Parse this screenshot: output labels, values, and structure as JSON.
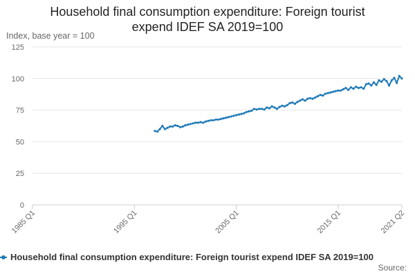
{
  "chart_data": {
    "type": "line",
    "title": "Household final consumption expenditure: Foreign tourist expend IDEF SA 2019=100",
    "title_lines": [
      "Household final consumption expenditure: Foreign tourist",
      "expend IDEF SA 2019=100"
    ],
    "ylabel": "Index, base year = 100",
    "xlabel": "",
    "ylim": [
      0,
      125
    ],
    "yticks": [
      0,
      25,
      50,
      75,
      100,
      125
    ],
    "xlim": [
      1985,
      2021.25
    ],
    "xticks": [
      {
        "label": "1985 Q1",
        "value": 1985
      },
      {
        "label": "1995 Q1",
        "value": 1995
      },
      {
        "label": "2005 Q1",
        "value": 2005
      },
      {
        "label": "2015 Q1",
        "value": 2015
      },
      {
        "label": "2021 Q2",
        "value": 2021.25
      }
    ],
    "grid": true,
    "legend_position": "bottom",
    "series": [
      {
        "name": "Household final consumption expenditure: Foreign tourist expend IDEF SA 2019=100",
        "color": "#1f7ab8",
        "points": [
          [
            1997.0,
            58.5
          ],
          [
            1997.25,
            58.0
          ],
          [
            1997.5,
            60.0
          ],
          [
            1997.75,
            62.5
          ],
          [
            1998.0,
            60.0
          ],
          [
            1998.25,
            61.0
          ],
          [
            1998.5,
            62.0
          ],
          [
            1998.75,
            62.0
          ],
          [
            1999.0,
            63.0
          ],
          [
            1999.25,
            62.5
          ],
          [
            1999.5,
            61.5
          ],
          [
            1999.75,
            62.0
          ],
          [
            2000.0,
            63.0
          ],
          [
            2000.25,
            63.5
          ],
          [
            2000.5,
            64.0
          ],
          [
            2000.75,
            64.5
          ],
          [
            2001.0,
            65.0
          ],
          [
            2001.25,
            65.0
          ],
          [
            2001.5,
            65.5
          ],
          [
            2001.75,
            65.0
          ],
          [
            2002.0,
            66.0
          ],
          [
            2002.25,
            66.5
          ],
          [
            2002.5,
            67.0
          ],
          [
            2002.75,
            67.0
          ],
          [
            2003.0,
            67.5
          ],
          [
            2003.25,
            67.5
          ],
          [
            2003.5,
            68.0
          ],
          [
            2003.75,
            68.5
          ],
          [
            2004.0,
            69.0
          ],
          [
            2004.25,
            69.5
          ],
          [
            2004.5,
            70.0
          ],
          [
            2004.75,
            70.5
          ],
          [
            2005.0,
            71.0
          ],
          [
            2005.25,
            71.5
          ],
          [
            2005.5,
            72.0
          ],
          [
            2005.75,
            72.5
          ],
          [
            2006.0,
            73.5
          ],
          [
            2006.25,
            74.0
          ],
          [
            2006.5,
            74.5
          ],
          [
            2006.75,
            76.0
          ],
          [
            2007.0,
            75.5
          ],
          [
            2007.25,
            76.0
          ],
          [
            2007.5,
            76.0
          ],
          [
            2007.75,
            75.5
          ],
          [
            2008.0,
            77.0
          ],
          [
            2008.25,
            76.5
          ],
          [
            2008.5,
            78.0
          ],
          [
            2008.75,
            77.0
          ],
          [
            2009.0,
            76.0
          ],
          [
            2009.25,
            77.5
          ],
          [
            2009.5,
            78.5
          ],
          [
            2009.75,
            78.0
          ],
          [
            2010.0,
            79.0
          ],
          [
            2010.25,
            80.5
          ],
          [
            2010.5,
            81.0
          ],
          [
            2010.75,
            80.0
          ],
          [
            2011.0,
            81.5
          ],
          [
            2011.25,
            82.5
          ],
          [
            2011.5,
            83.5
          ],
          [
            2011.75,
            82.5
          ],
          [
            2012.0,
            84.0
          ],
          [
            2012.25,
            84.5
          ],
          [
            2012.5,
            84.0
          ],
          [
            2012.75,
            85.0
          ],
          [
            2013.0,
            86.0
          ],
          [
            2013.25,
            87.0
          ],
          [
            2013.5,
            86.5
          ],
          [
            2013.75,
            88.0
          ],
          [
            2014.0,
            88.5
          ],
          [
            2014.25,
            89.0
          ],
          [
            2014.5,
            89.5
          ],
          [
            2014.75,
            90.0
          ],
          [
            2015.0,
            90.5
          ],
          [
            2015.25,
            90.5
          ],
          [
            2015.5,
            91.5
          ],
          [
            2015.75,
            92.5
          ],
          [
            2016.0,
            91.0
          ],
          [
            2016.25,
            93.0
          ],
          [
            2016.5,
            92.0
          ],
          [
            2016.75,
            93.5
          ],
          [
            2017.0,
            92.5
          ],
          [
            2017.25,
            93.0
          ],
          [
            2017.5,
            92.0
          ],
          [
            2017.75,
            95.5
          ],
          [
            2018.0,
            96.0
          ],
          [
            2018.25,
            94.5
          ],
          [
            2018.5,
            97.0
          ],
          [
            2018.75,
            95.0
          ],
          [
            2019.0,
            98.5
          ],
          [
            2019.25,
            97.5
          ],
          [
            2019.5,
            99.5
          ],
          [
            2019.75,
            98.0
          ],
          [
            2020.0,
            94.5
          ],
          [
            2020.25,
            98.5
          ],
          [
            2020.5,
            100.5
          ],
          [
            2020.75,
            96.5
          ],
          [
            2021.0,
            102.0
          ],
          [
            2021.25,
            100.0
          ]
        ]
      }
    ],
    "source_label": "Source:"
  }
}
